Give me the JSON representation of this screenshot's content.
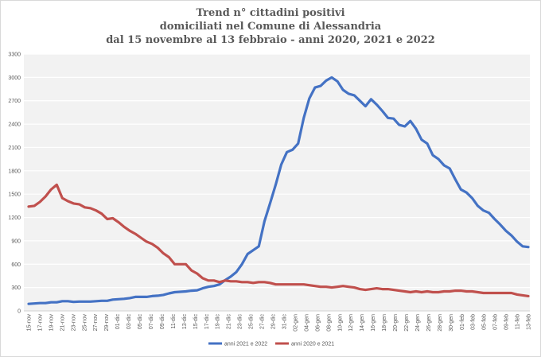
{
  "chart_data": {
    "type": "line",
    "title": [
      "Trend n° cittadini positivi",
      "domiciliati nel Comune di Alessandria",
      "dal 15 novembre al 13 febbraio - anni 2020, 2021 e 2022"
    ],
    "xlabel": "",
    "ylabel": "",
    "ylim": [
      0,
      3300
    ],
    "yticks": [
      "0",
      "300",
      "600",
      "900",
      "1200",
      "1500",
      "1800",
      "2100",
      "2400",
      "2700",
      "3000",
      "3300"
    ],
    "grid": "horizontal",
    "legend_position": "bottom",
    "x_tick_labels": [
      "15-nov",
      "17-nov",
      "19-nov",
      "21-nov",
      "23-nov",
      "25-nov",
      "27-nov",
      "29-nov",
      "01-dic",
      "03-dic",
      "05-dic",
      "07-dic",
      "09-dic",
      "11-dic",
      "13-dic",
      "15-dic",
      "17-dic",
      "19-dic",
      "21-dic",
      "23-dic",
      "25-dic",
      "27-dic",
      "29-dic",
      "31-dic",
      "02-gen",
      "04-gen",
      "06-gen",
      "08-gen",
      "10-gen",
      "12-gen",
      "14-gen",
      "16-gen",
      "18-gen",
      "20-gen",
      "22-gen",
      "24-gen",
      "26-gen",
      "28-gen",
      "30-gen",
      "01-feb",
      "03-feb",
      "05-feb",
      "07-feb",
      "09-feb",
      "11-feb",
      "13-feb"
    ],
    "series": [
      {
        "name": "anni 2021 e 2022",
        "color": "#4472c4",
        "values": [
          90,
          95,
          100,
          100,
          110,
          110,
          125,
          125,
          115,
          120,
          120,
          120,
          125,
          130,
          130,
          145,
          150,
          155,
          165,
          180,
          180,
          180,
          190,
          195,
          205,
          225,
          240,
          245,
          250,
          260,
          265,
          290,
          310,
          320,
          340,
          395,
          440,
          500,
          600,
          730,
          780,
          830,
          1150,
          1380,
          1620,
          1880,
          2040,
          2070,
          2150,
          2480,
          2730,
          2870,
          2890,
          2960,
          3000,
          2950,
          2840,
          2790,
          2770,
          2700,
          2630,
          2720,
          2650,
          2570,
          2480,
          2470,
          2390,
          2370,
          2440,
          2340,
          2200,
          2150,
          2000,
          1950,
          1870,
          1830,
          1690,
          1560,
          1520,
          1450,
          1350,
          1290,
          1260,
          1180,
          1110,
          1030,
          970,
          890,
          830,
          820
        ]
      },
      {
        "name": "anni 2020 e 2021",
        "color": "#c0504d",
        "values": [
          1340,
          1350,
          1400,
          1470,
          1560,
          1620,
          1450,
          1410,
          1380,
          1370,
          1330,
          1320,
          1290,
          1250,
          1180,
          1190,
          1140,
          1080,
          1030,
          990,
          940,
          890,
          860,
          810,
          740,
          690,
          600,
          600,
          600,
          520,
          480,
          420,
          390,
          390,
          370,
          390,
          380,
          380,
          370,
          370,
          360,
          370,
          370,
          360,
          340,
          340,
          340,
          340,
          340,
          340,
          330,
          320,
          310,
          310,
          300,
          310,
          320,
          310,
          300,
          280,
          270,
          280,
          290,
          280,
          280,
          270,
          260,
          250,
          240,
          250,
          240,
          250,
          240,
          240,
          250,
          250,
          260,
          260,
          250,
          250,
          240,
          230,
          230,
          230,
          230,
          230,
          230,
          210,
          200,
          190
        ]
      }
    ]
  }
}
